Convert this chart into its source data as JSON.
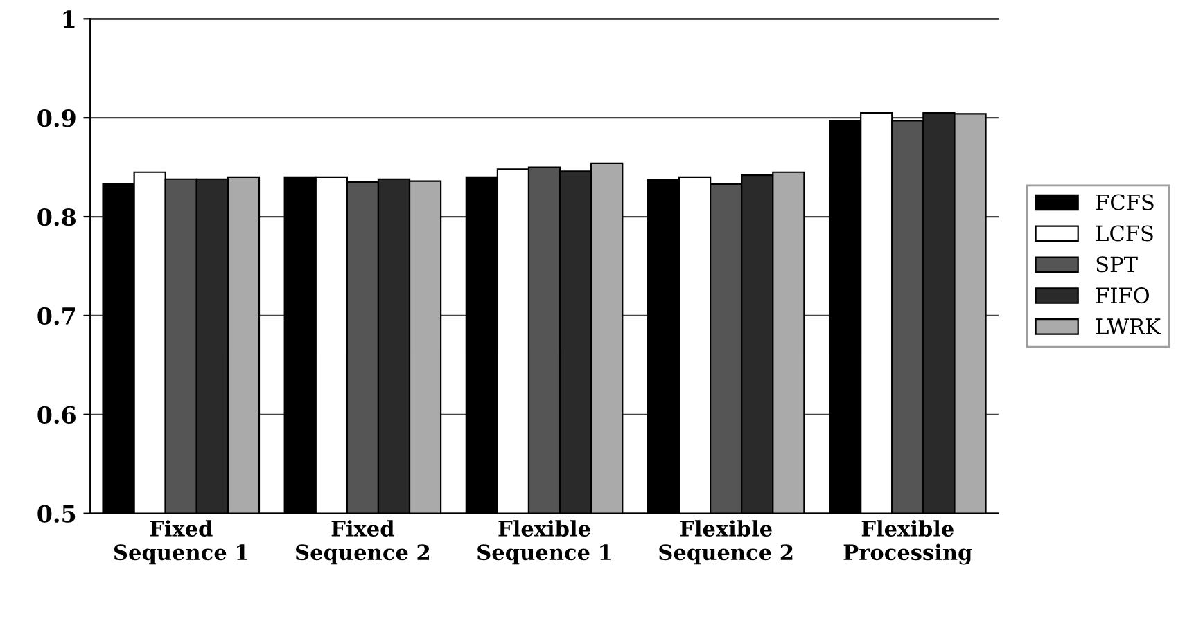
{
  "chart_data": {
    "type": "bar",
    "categories": [
      "Fixed\nSequence 1",
      "Fixed\nSequence 2",
      "Flexible\nSequence 1",
      "Flexible\nSequence 2",
      "Flexible\nProcessing"
    ],
    "series": [
      {
        "name": "FCFS",
        "color": "#000000",
        "values": [
          0.833,
          0.84,
          0.84,
          0.837,
          0.897
        ]
      },
      {
        "name": "LCFS",
        "color": "#ffffff",
        "values": [
          0.845,
          0.84,
          0.848,
          0.84,
          0.905
        ]
      },
      {
        "name": "SPT",
        "color": "#555555",
        "values": [
          0.838,
          0.835,
          0.85,
          0.833,
          0.897
        ]
      },
      {
        "name": "FIFO",
        "color": "#2a2a2a",
        "values": [
          0.838,
          0.838,
          0.846,
          0.842,
          0.905
        ]
      },
      {
        "name": "LWRK",
        "color": "#aaaaaa",
        "values": [
          0.84,
          0.836,
          0.854,
          0.845,
          0.904
        ]
      }
    ],
    "ylim": [
      0.5,
      1
    ],
    "yticks": [
      0.5,
      0.6,
      0.7,
      0.8,
      0.9,
      1
    ],
    "grid": "y",
    "legend": "right"
  }
}
